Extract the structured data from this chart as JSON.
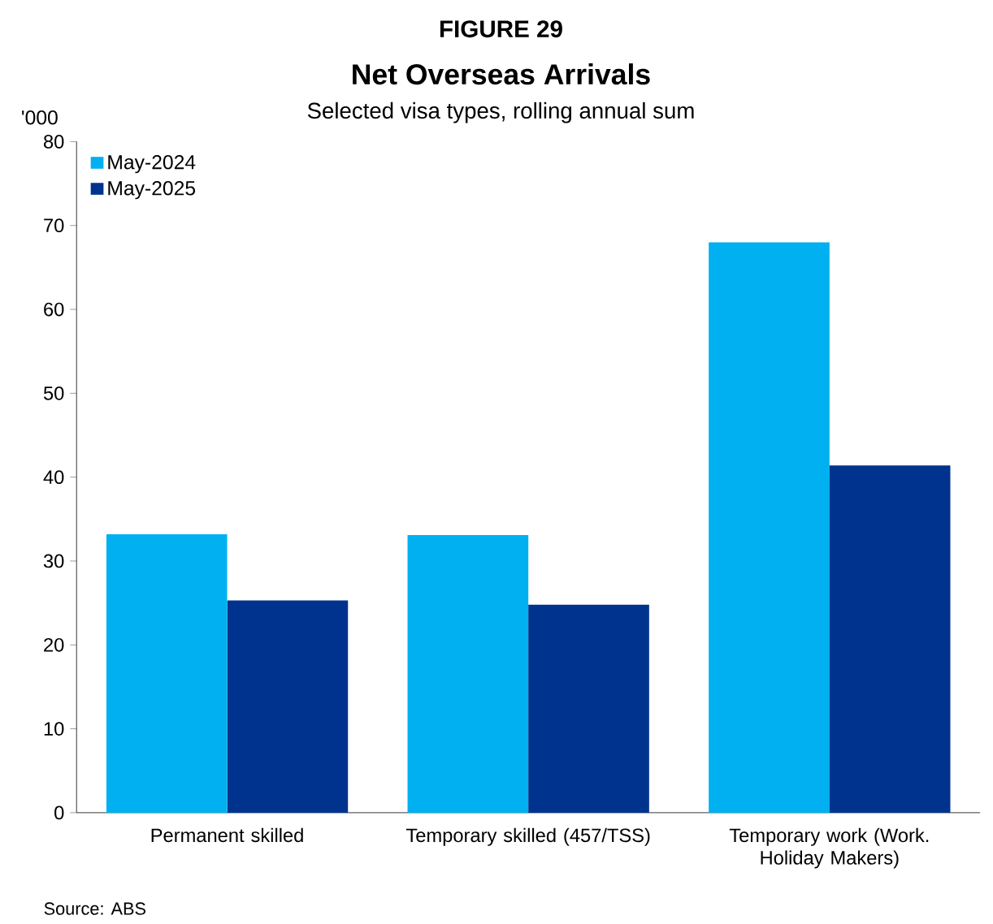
{
  "chart_data": {
    "type": "bar",
    "title": "Net Overseas Arrivals",
    "subtitle": "Selected visa types, rolling annual sum",
    "ylabel": "'000",
    "annotations": [
      "FIGURE 29",
      "Source: ABS"
    ],
    "categories": [
      "Permanent skilled",
      "Temporary skilled (457/TSS)",
      "Temporary work (Work. Holiday Makers)"
    ],
    "series": [
      {
        "name": "May-2024",
        "color": "#00b0f0",
        "values": [
          33.2,
          33.1,
          68.0
        ]
      },
      {
        "name": "May-2025",
        "color": "#00338d",
        "values": [
          25.3,
          24.8,
          41.4
        ]
      }
    ],
    "ylim": [
      0,
      80
    ],
    "yticks": [
      0,
      10,
      20,
      30,
      40,
      50,
      60,
      70,
      80
    ],
    "grid": false,
    "legend": "top left"
  }
}
